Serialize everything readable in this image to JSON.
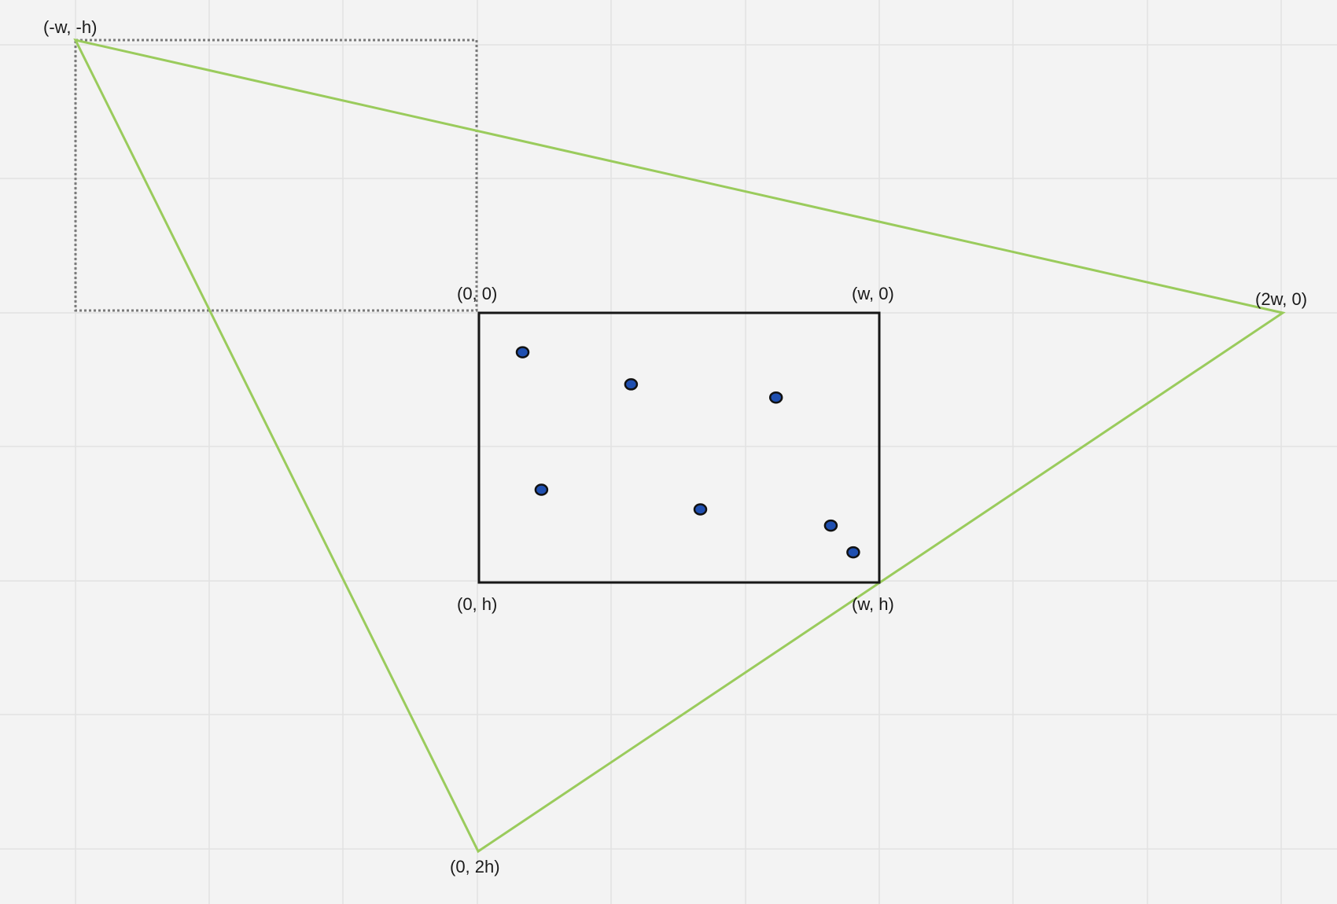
{
  "vertex_labels": {
    "neg_w_neg_h": "(-w, -h)",
    "origin": "(0, 0)",
    "w_0": "(w, 0)",
    "two_w_0": "(2w, 0)",
    "zero_h": "(0, h)",
    "w_h": "(w, h)",
    "zero_2h": "(0, 2h)"
  },
  "colors": {
    "background": "#f3f3f3",
    "grid": "#e2e2e2",
    "triangle": "#9acb5c",
    "rectangle": "#161616",
    "dotted_rectangle": "#7a7a7a",
    "point_fill": "#1f4fb0"
  },
  "points": [
    {
      "u": 0.109,
      "v": 0.146
    },
    {
      "u": 0.38,
      "v": 0.265
    },
    {
      "u": 0.742,
      "v": 0.314
    },
    {
      "u": 0.156,
      "v": 0.656
    },
    {
      "u": 0.553,
      "v": 0.729
    },
    {
      "u": 0.879,
      "v": 0.789
    },
    {
      "u": 0.935,
      "v": 0.888
    }
  ]
}
